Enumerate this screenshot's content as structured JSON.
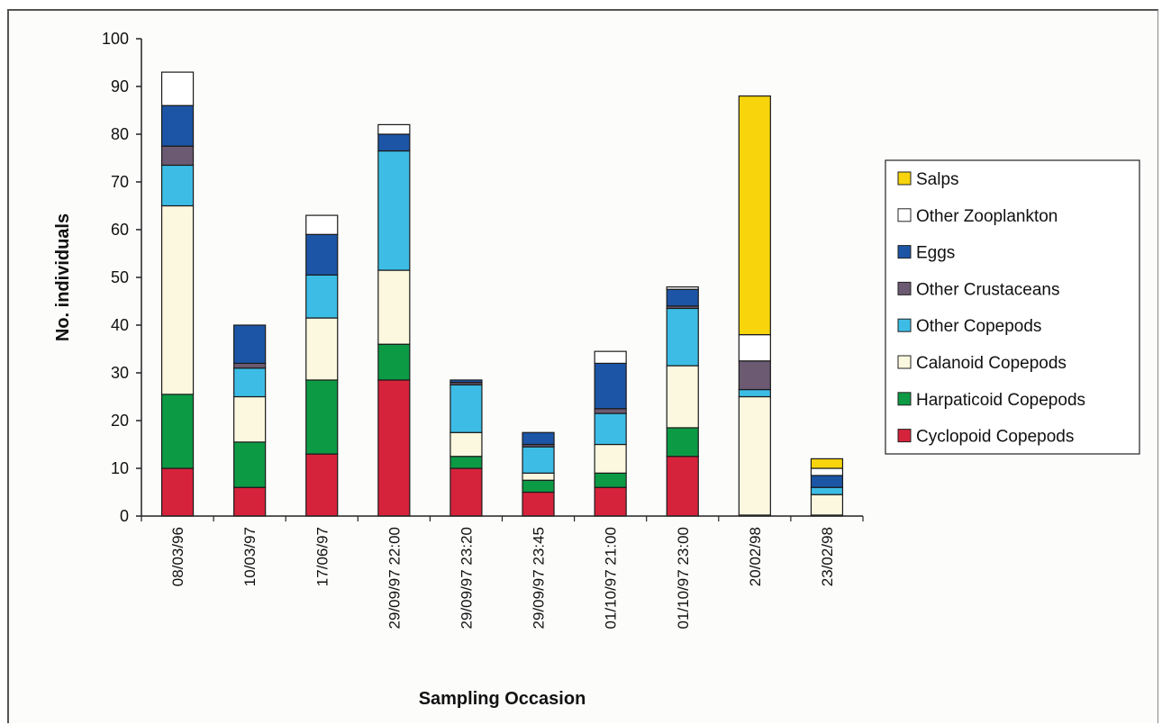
{
  "chart_data": {
    "type": "bar",
    "stacked": true,
    "xlabel": "Sampling Occasion",
    "ylabel": "No. individuals",
    "ylim": [
      0,
      100
    ],
    "yticks": [
      0,
      10,
      20,
      30,
      40,
      50,
      60,
      70,
      80,
      90,
      100
    ],
    "grid": false,
    "legend_position": "right",
    "categories": [
      "08/03/96",
      "10/03/97",
      "17/06/97",
      "29/09/97 22:00",
      "29/09/97 23:20",
      "29/09/97 23:45",
      "01/10/97 21:00",
      "01/10/97 23:00",
      "20/02/98",
      "23/02/98"
    ],
    "series": [
      {
        "name": "Cyclopoid Copepods",
        "color": "#d6233c",
        "values": [
          10,
          6,
          13,
          28.5,
          10,
          5,
          6,
          12.5,
          0.2,
          0.2
        ]
      },
      {
        "name": "Harpaticoid Copepods",
        "color": "#0d9a45",
        "values": [
          15.5,
          9.5,
          15.5,
          7.5,
          2.5,
          2.5,
          3,
          6,
          0,
          0
        ]
      },
      {
        "name": "Calanoid Copepods",
        "color": "#fbf8df",
        "values": [
          39.5,
          9.5,
          13,
          15.5,
          5,
          1.5,
          6,
          13,
          24.8,
          4.3
        ]
      },
      {
        "name": "Other Copepods",
        "color": "#3dbde6",
        "values": [
          8.5,
          6,
          9,
          25,
          10,
          5.5,
          6.5,
          12,
          1.5,
          1.5
        ]
      },
      {
        "name": "Other Crustaceans",
        "color": "#6b5a72",
        "values": [
          4,
          1,
          0,
          0,
          0.5,
          0.5,
          1,
          0.5,
          6,
          0
        ]
      },
      {
        "name": "Eggs",
        "color": "#1d55a6",
        "values": [
          8.5,
          8,
          8.5,
          3.5,
          0.5,
          2.5,
          9.5,
          3.5,
          0,
          2.5
        ]
      },
      {
        "name": "Other Zooplankton",
        "color": "#ffffff",
        "values": [
          7,
          0,
          4,
          2,
          0,
          0,
          2.5,
          0.5,
          5.5,
          1.5
        ]
      },
      {
        "name": "Salps",
        "color": "#f7d40b",
        "values": [
          0,
          0,
          0,
          0,
          0,
          0,
          0,
          0,
          50,
          2
        ]
      }
    ]
  }
}
